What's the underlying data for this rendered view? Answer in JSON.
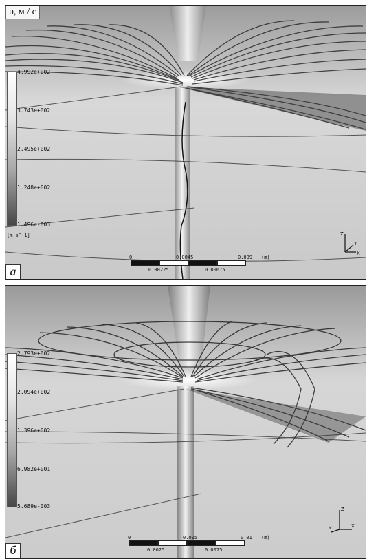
{
  "panel_a": {
    "letter": "a",
    "legend_title": "υ, м / с",
    "unit": "[m s^-1]",
    "ticks": [
      "4.992e+002",
      "3.743e+002",
      "2.495e+002",
      "1.248e+002",
      "1.496e-003"
    ],
    "scale_top": [
      "0",
      "0.0045",
      "0.009",
      "(m)"
    ],
    "scale_bottom": [
      "0.00225",
      "0.00675"
    ],
    "axes": [
      "Z",
      "X",
      "Y"
    ]
  },
  "panel_b": {
    "letter": "б",
    "ticks": [
      "2.793e+002",
      "2.094e+002",
      "1.396e+002",
      "6.982e+001",
      "5.689e-003"
    ],
    "scale_top": [
      "0",
      "0.005",
      "0.01",
      "(m)"
    ],
    "scale_bottom": [
      "0.0025",
      "0.0075"
    ],
    "axes": [
      "Z",
      "X",
      "Y"
    ]
  }
}
